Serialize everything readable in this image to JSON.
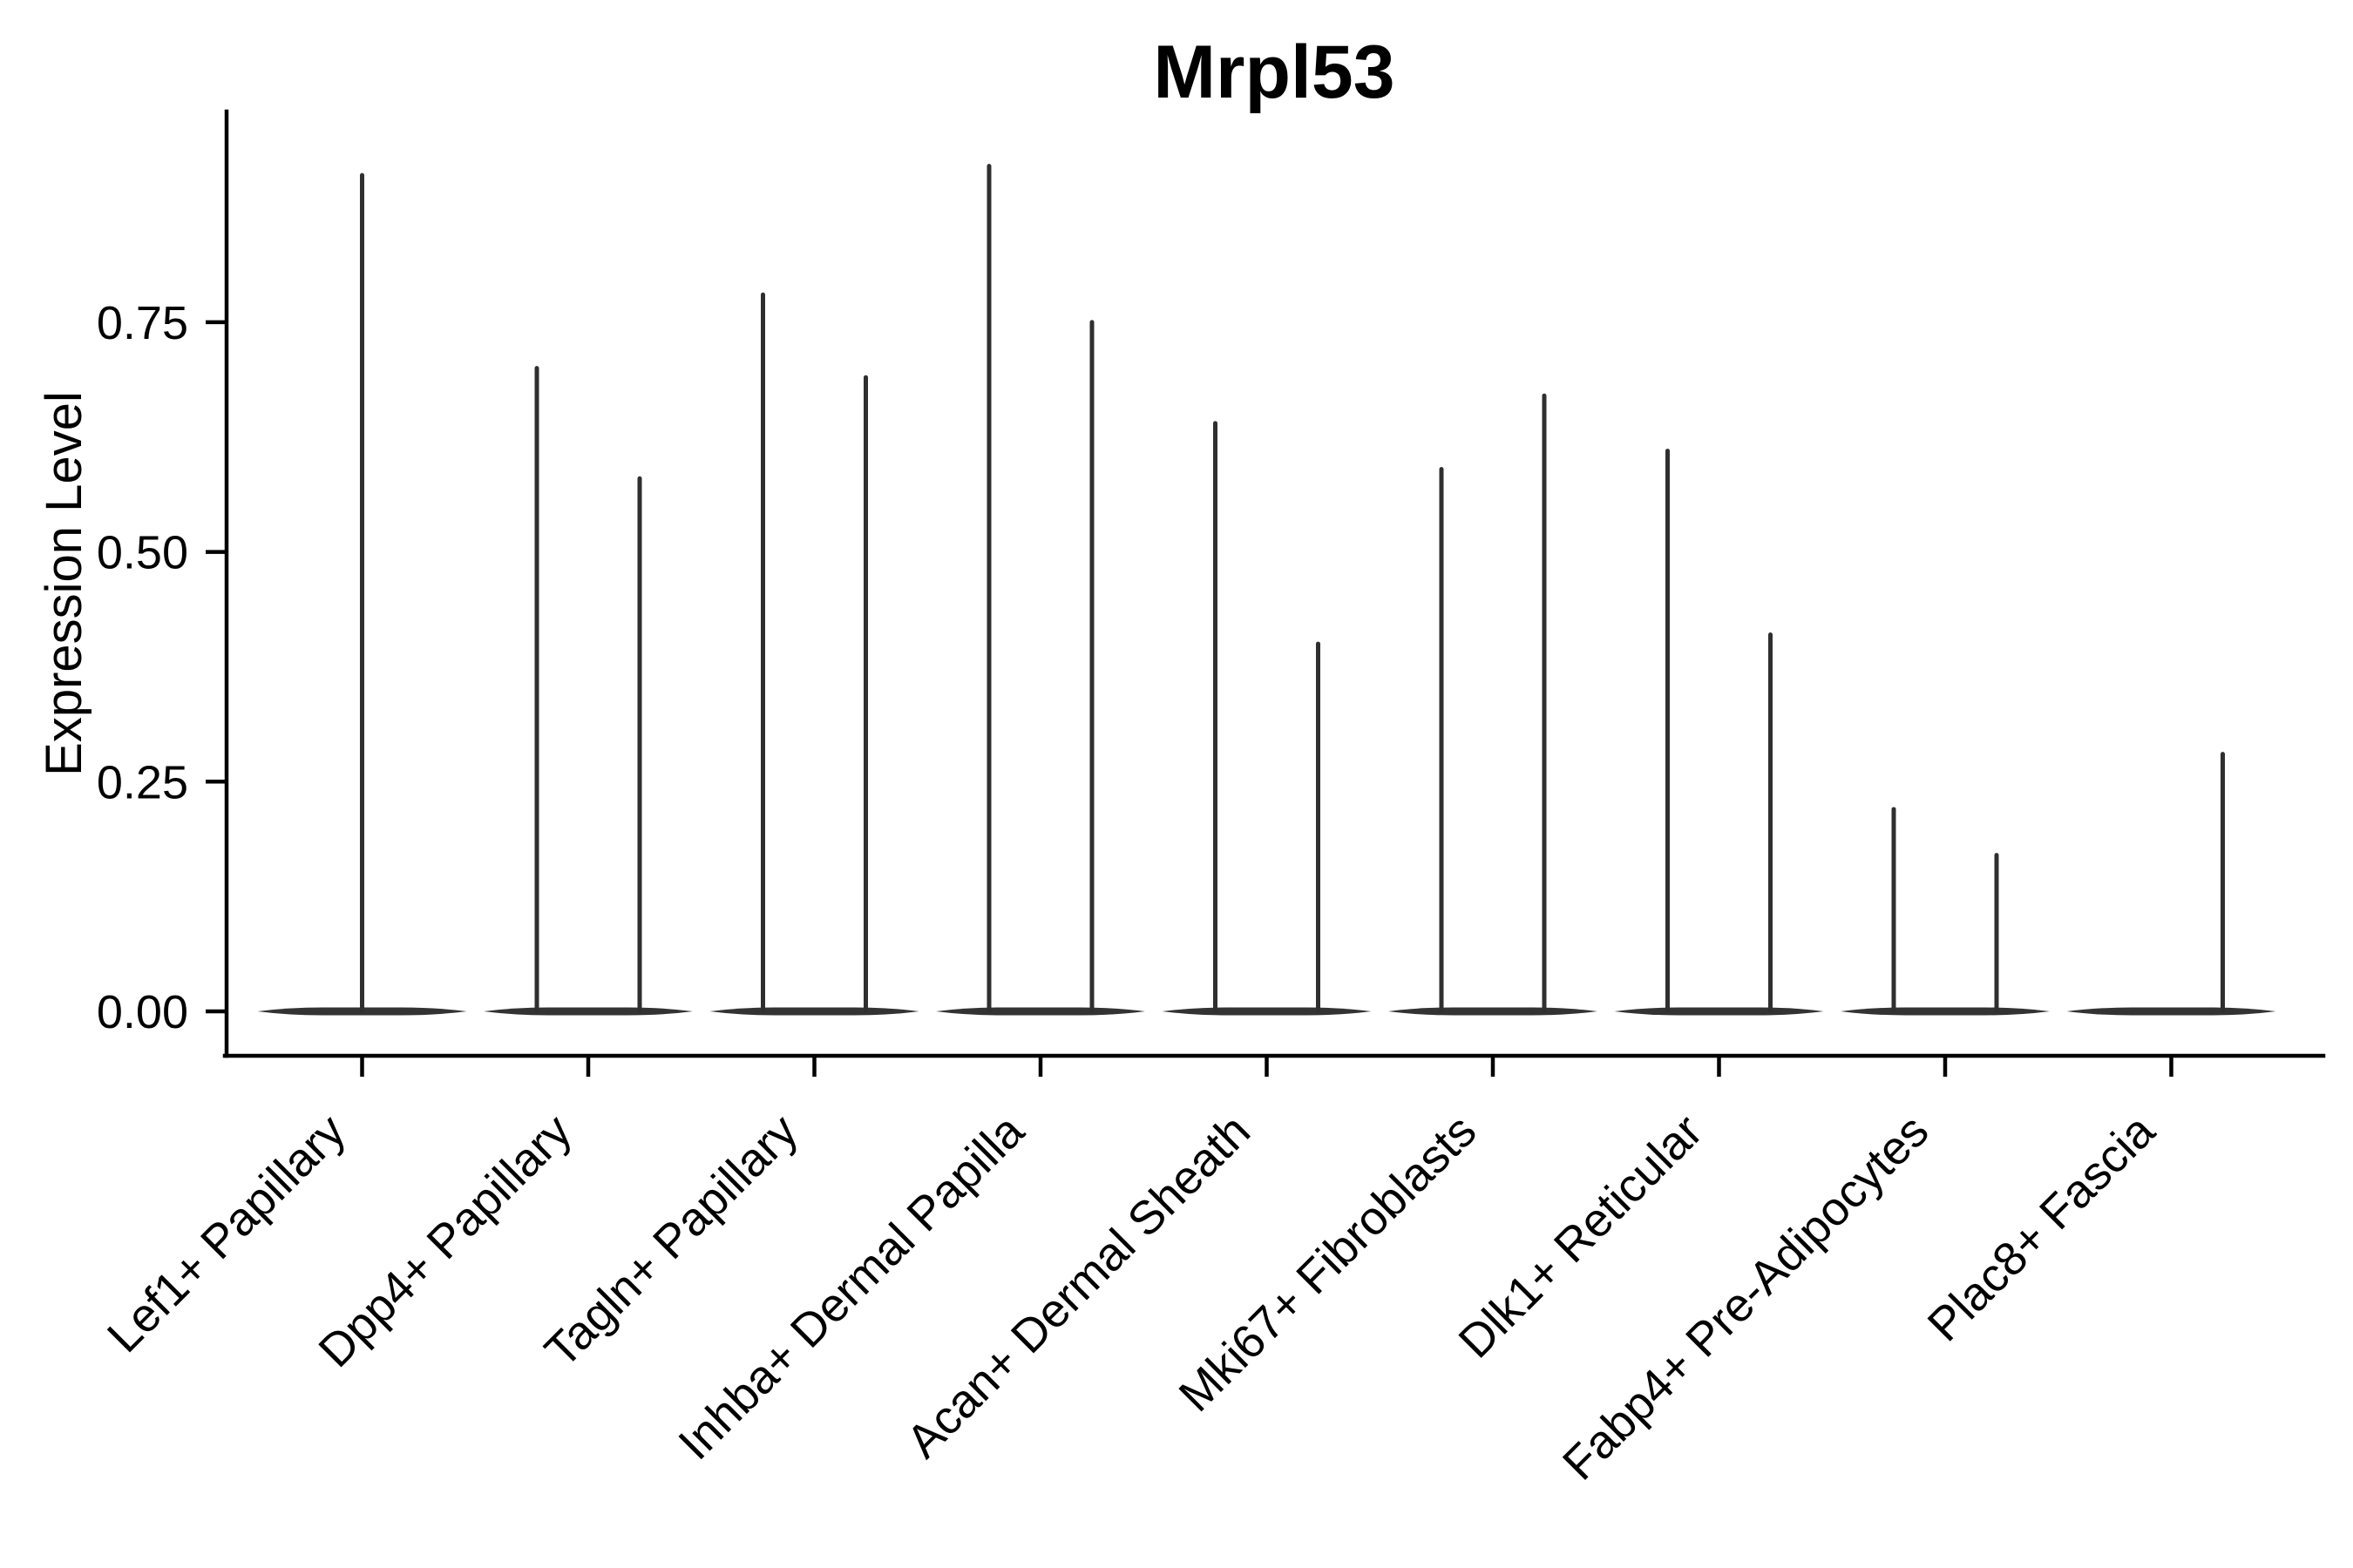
{
  "title": "Mrpl53",
  "y_axis": {
    "label": "Expression Level",
    "tick_labels": [
      "0.00",
      "0.25",
      "0.50",
      "0.75"
    ],
    "tick_values": [
      0.0,
      0.25,
      0.5,
      0.75
    ]
  },
  "x_axis": {
    "categories": [
      "Lef1+ Papillary",
      "Dpp4+ Papillary",
      "Tagln+ Papillary",
      "Inhba+ Dermal Papilla",
      "Acan+ Dermal Sheath",
      "Mki67+ Fibroblasts",
      "Dlk1+ Reticular",
      "Fabp4+ Pre-Adipocytes",
      "Plac8+ Fascia"
    ],
    "label_rotation_degrees": 45
  },
  "chart_data": {
    "type": "violin",
    "title": "Mrpl53",
    "xlabel": "",
    "ylabel": "Expression Level",
    "ylim": [
      0,
      0.98
    ],
    "y_ticks": [
      0.0,
      0.25,
      0.5,
      0.75
    ],
    "y_tick_labels": [
      "0.00",
      "0.25",
      "0.50",
      "0.75"
    ],
    "grid": false,
    "legend_position": "none",
    "baseline_value": 0.0,
    "line_color": "#2f2f2f",
    "axis_color": "#000000",
    "background_color": "#ffffff",
    "description": "Collapsed violin plot of Mrpl53 expression per fibroblast cluster; each violin is flat at 0 with thin spikes reaching the maximum expression value of the few expressing cells.",
    "categories": [
      "Lef1+ Papillary",
      "Dpp4+ Papillary",
      "Tagln+ Papillary",
      "Inhba+ Dermal Papilla",
      "Acan+ Dermal Sheath",
      "Mki67+ Fibroblasts",
      "Dlk1+ Reticular",
      "Fabp4+ Pre-Adipocytes",
      "Plac8+ Fascia"
    ],
    "violins": [
      {
        "category": "Lef1+ Papillary",
        "spikes": [
          {
            "position": "center",
            "max_expression": 0.91
          }
        ]
      },
      {
        "category": "Dpp4+ Papillary",
        "spikes": [
          {
            "position": "left",
            "max_expression": 0.7
          },
          {
            "position": "right",
            "max_expression": 0.58
          }
        ]
      },
      {
        "category": "Tagln+ Papillary",
        "spikes": [
          {
            "position": "left",
            "max_expression": 0.78
          },
          {
            "position": "right",
            "max_expression": 0.69
          }
        ]
      },
      {
        "category": "Inhba+ Dermal Papilla",
        "spikes": [
          {
            "position": "left",
            "max_expression": 0.92
          },
          {
            "position": "right",
            "max_expression": 0.75
          }
        ]
      },
      {
        "category": "Acan+ Dermal Sheath",
        "spikes": [
          {
            "position": "left",
            "max_expression": 0.64
          },
          {
            "position": "right",
            "max_expression": 0.4
          }
        ]
      },
      {
        "category": "Mki67+ Fibroblasts",
        "spikes": [
          {
            "position": "left",
            "max_expression": 0.59
          },
          {
            "position": "right",
            "max_expression": 0.67
          }
        ]
      },
      {
        "category": "Dlk1+ Reticular",
        "spikes": [
          {
            "position": "left",
            "max_expression": 0.61
          },
          {
            "position": "right",
            "max_expression": 0.41
          }
        ]
      },
      {
        "category": "Fabp4+ Pre-Adipocytes",
        "spikes": [
          {
            "position": "left",
            "max_expression": 0.22
          },
          {
            "position": "right",
            "max_expression": 0.17
          }
        ]
      },
      {
        "category": "Plac8+ Fascia",
        "spikes": [
          {
            "position": "right",
            "max_expression": 0.28
          }
        ]
      }
    ]
  }
}
